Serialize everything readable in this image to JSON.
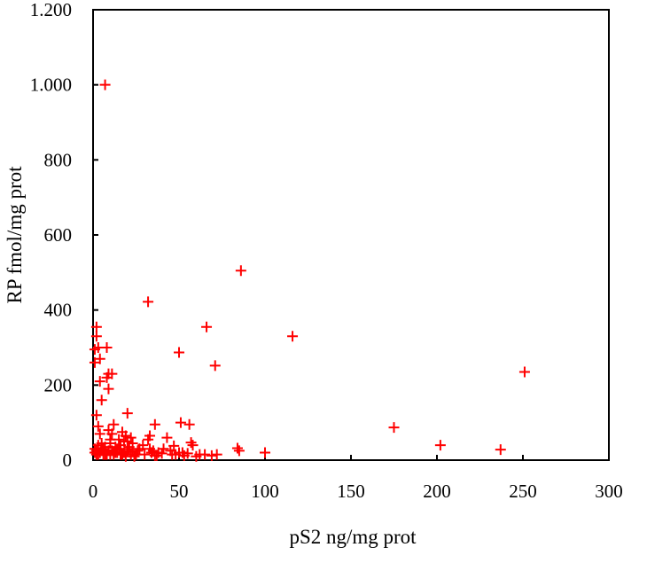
{
  "chart_data": {
    "type": "scatter",
    "title": "",
    "xlabel": "pS2 ng/mg prot",
    "ylabel": "RP fmol/mg prot",
    "xlim": [
      0,
      300
    ],
    "ylim": [
      0,
      1200
    ],
    "x_ticks": [
      0,
      50,
      100,
      150,
      200,
      250,
      300
    ],
    "x_tick_labels": [
      "0",
      "50",
      "100",
      "150",
      "200",
      "250",
      "300"
    ],
    "y_ticks": [
      0,
      200,
      400,
      600,
      800,
      1000,
      1200
    ],
    "y_tick_labels": [
      "0",
      "200",
      "400",
      "600",
      "800",
      "1.000",
      "1.200"
    ],
    "grid": false,
    "legend": false,
    "marker": "plus",
    "marker_color": "#ff0000",
    "series": [
      {
        "x": [
          7,
          86,
          32,
          66,
          116,
          50,
          71,
          251,
          175,
          202,
          237,
          100,
          85,
          84,
          72,
          69,
          65,
          57,
          58,
          56,
          51,
          52,
          47,
          46,
          43,
          41,
          38,
          36,
          35,
          37,
          33,
          32,
          29,
          27,
          25,
          23,
          22,
          21,
          20,
          19,
          18,
          17,
          16,
          15,
          14,
          13,
          12,
          11,
          10,
          9,
          8,
          7,
          6,
          5,
          4,
          3,
          2,
          1,
          1,
          1,
          2,
          2,
          3,
          4,
          4,
          5,
          8,
          9,
          9,
          11,
          20,
          20,
          16,
          13,
          12,
          10,
          9,
          6,
          5,
          3,
          2,
          1,
          2,
          3,
          4,
          5,
          6,
          7,
          8,
          10,
          11,
          12,
          14,
          15,
          17,
          18,
          19,
          21,
          22,
          23,
          24,
          26,
          30,
          33,
          34,
          36,
          40,
          45,
          48,
          50,
          53,
          55,
          60,
          62
        ],
        "y": [
          1000,
          505,
          422,
          355,
          330,
          287,
          252,
          235,
          87,
          40,
          28,
          20,
          25,
          32,
          15,
          12,
          15,
          47,
          40,
          95,
          100,
          20,
          38,
          15,
          60,
          30,
          20,
          95,
          25,
          12,
          65,
          55,
          40,
          30,
          15,
          45,
          60,
          30,
          125,
          65,
          50,
          75,
          40,
          55,
          30,
          20,
          95,
          70,
          55,
          80,
          300,
          35,
          25,
          45,
          70,
          90,
          120,
          20,
          260,
          295,
          355,
          330,
          300,
          270,
          210,
          160,
          220,
          230,
          190,
          230,
          25,
          50,
          15,
          35,
          20,
          45,
          25,
          15,
          30,
          40,
          25,
          30,
          15,
          15,
          20,
          25,
          30,
          15,
          15,
          15,
          25,
          15,
          20,
          30,
          15,
          20,
          10,
          35,
          15,
          22,
          10,
          25,
          15,
          30,
          20,
          12,
          18,
          25,
          15,
          20,
          12,
          18,
          10,
          15
        ]
      }
    ]
  }
}
